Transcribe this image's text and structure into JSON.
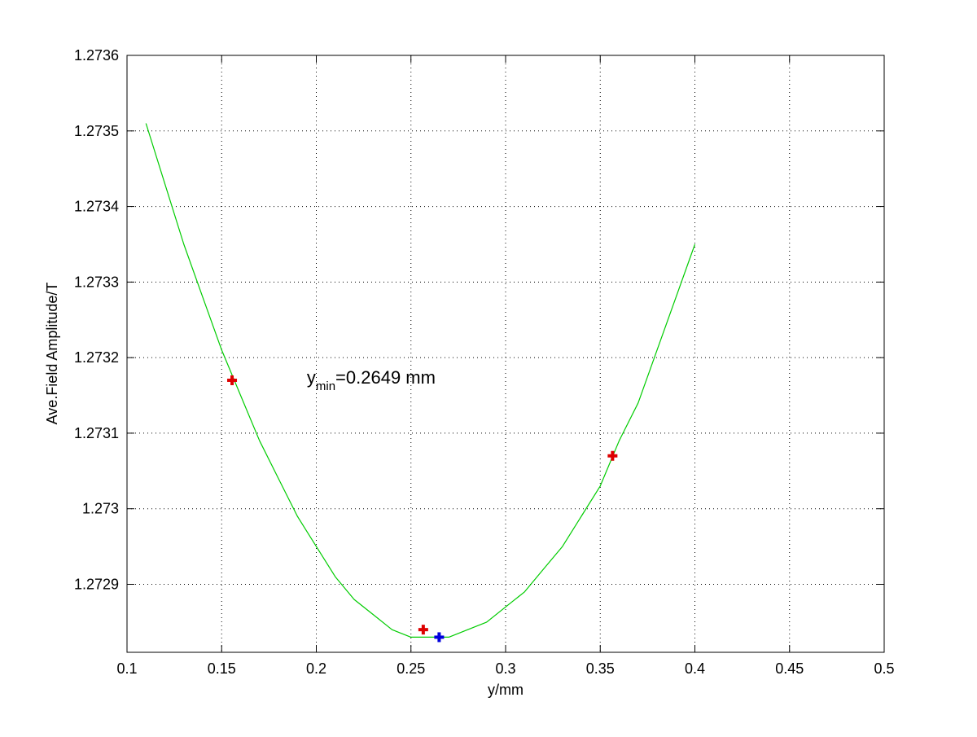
{
  "chart_data": {
    "type": "line",
    "title": "",
    "xlabel": "y/mm",
    "ylabel": "Ave.Field Amplitude/T",
    "xlim": [
      0.1,
      0.5
    ],
    "ylim": [
      1.27281,
      1.2736
    ],
    "x_ticks": [
      0.1,
      0.15,
      0.2,
      0.25,
      0.3,
      0.35,
      0.4,
      0.45,
      0.5
    ],
    "x_tick_labels": [
      "0.1",
      "0.15",
      "0.2",
      "0.25",
      "0.3",
      "0.35",
      "0.4",
      "0.45",
      "0.5"
    ],
    "y_ticks": [
      1.2729,
      1.273,
      1.2731,
      1.2732,
      1.2733,
      1.2734,
      1.2735,
      1.2736
    ],
    "y_tick_labels": [
      "1.2729",
      "1.273",
      "1.2731",
      "1.2732",
      "1.2733",
      "1.2734",
      "1.2735",
      "1.2736"
    ],
    "grid": true,
    "grid_style": "dotted",
    "series": [
      {
        "kind": "line",
        "color": "#00cc00",
        "x": [
          0.11,
          0.12,
          0.13,
          0.14,
          0.15,
          0.16,
          0.17,
          0.18,
          0.19,
          0.2,
          0.21,
          0.22,
          0.23,
          0.24,
          0.25,
          0.26,
          0.265,
          0.27,
          0.28,
          0.29,
          0.3,
          0.31,
          0.32,
          0.33,
          0.34,
          0.35,
          0.36,
          0.37,
          0.38,
          0.39,
          0.4
        ],
        "y": [
          1.27351,
          1.27343,
          1.27335,
          1.27328,
          1.27321,
          1.27315,
          1.27309,
          1.27304,
          1.27299,
          1.27295,
          1.27291,
          1.27288,
          1.27286,
          1.27284,
          1.27283,
          1.27283,
          1.27283,
          1.27283,
          1.27284,
          1.27285,
          1.27287,
          1.27289,
          1.27292,
          1.27295,
          1.27299,
          1.27303,
          1.27309,
          1.27314,
          1.27321,
          1.27328,
          1.27335
        ]
      },
      {
        "kind": "markers",
        "marker": "plus",
        "color": "#dd0000",
        "x": [
          0.1555,
          0.2565,
          0.3565
        ],
        "y": [
          1.27317,
          1.27284,
          1.27307
        ]
      },
      {
        "kind": "markers",
        "marker": "plus",
        "color": "#0000dd",
        "x": [
          0.2649
        ],
        "y": [
          1.27283
        ]
      }
    ],
    "annotation": {
      "base": "y",
      "subscript": "min",
      "rest": "=0.2649 mm",
      "x": 0.195,
      "y": 1.27317
    }
  }
}
